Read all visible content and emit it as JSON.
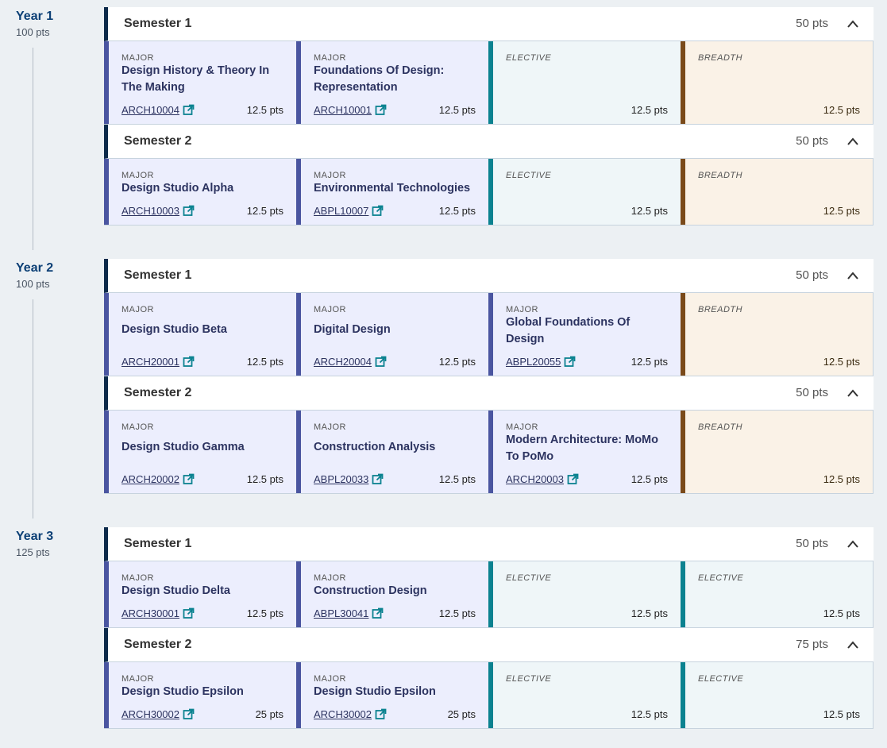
{
  "years": [
    {
      "title": "Year 1",
      "pts": "100 pts",
      "semesters": [
        {
          "title": "Semester 1",
          "pts": "50 pts",
          "cards": [
            {
              "kind": "major",
              "type": "MAJOR",
              "name": "Design History & Theory In The Making",
              "code": "ARCH10004",
              "pts": "12.5 pts"
            },
            {
              "kind": "major",
              "type": "MAJOR",
              "name": "Foundations Of Design: Representation",
              "code": "ARCH10001",
              "pts": "12.5 pts"
            },
            {
              "kind": "elective",
              "type": "ELECTIVE",
              "name": "",
              "code": "",
              "pts": "12.5 pts"
            },
            {
              "kind": "breadth",
              "type": "BREADTH",
              "name": "",
              "code": "",
              "pts": "12.5 pts"
            }
          ]
        },
        {
          "title": "Semester 2",
          "pts": "50 pts",
          "cards": [
            {
              "kind": "major",
              "type": "MAJOR",
              "name": "Design Studio Alpha",
              "code": "ARCH10003",
              "pts": "12.5 pts"
            },
            {
              "kind": "major",
              "type": "MAJOR",
              "name": "Environmental Technologies",
              "code": "ABPL10007",
              "pts": "12.5 pts"
            },
            {
              "kind": "elective",
              "type": "ELECTIVE",
              "name": "",
              "code": "",
              "pts": "12.5 pts"
            },
            {
              "kind": "breadth",
              "type": "BREADTH",
              "name": "",
              "code": "",
              "pts": "12.5 pts"
            }
          ]
        }
      ]
    },
    {
      "title": "Year 2",
      "pts": "100 pts",
      "semesters": [
        {
          "title": "Semester 1",
          "pts": "50 pts",
          "cards": [
            {
              "kind": "major",
              "type": "MAJOR",
              "name": "Design Studio Beta",
              "code": "ARCH20001",
              "pts": "12.5 pts"
            },
            {
              "kind": "major",
              "type": "MAJOR",
              "name": "Digital Design",
              "code": "ARCH20004",
              "pts": "12.5 pts"
            },
            {
              "kind": "major",
              "type": "MAJOR",
              "name": "Global Foundations Of Design",
              "code": "ABPL20055",
              "pts": "12.5 pts"
            },
            {
              "kind": "breadth",
              "type": "BREADTH",
              "name": "",
              "code": "",
              "pts": "12.5 pts"
            }
          ]
        },
        {
          "title": "Semester 2",
          "pts": "50 pts",
          "cards": [
            {
              "kind": "major",
              "type": "MAJOR",
              "name": "Design Studio Gamma",
              "code": "ARCH20002",
              "pts": "12.5 pts"
            },
            {
              "kind": "major",
              "type": "MAJOR",
              "name": "Construction Analysis",
              "code": "ABPL20033",
              "pts": "12.5 pts"
            },
            {
              "kind": "major",
              "type": "MAJOR",
              "name": "Modern Architecture: MoMo To PoMo",
              "code": "ARCH20003",
              "pts": "12.5 pts"
            },
            {
              "kind": "breadth",
              "type": "BREADTH",
              "name": "",
              "code": "",
              "pts": "12.5 pts"
            }
          ]
        }
      ]
    },
    {
      "title": "Year 3",
      "pts": "125 pts",
      "semesters": [
        {
          "title": "Semester 1",
          "pts": "50 pts",
          "cards": [
            {
              "kind": "major",
              "type": "MAJOR",
              "name": "Design Studio Delta",
              "code": "ARCH30001",
              "pts": "12.5 pts"
            },
            {
              "kind": "major",
              "type": "MAJOR",
              "name": "Construction Design",
              "code": "ABPL30041",
              "pts": "12.5 pts"
            },
            {
              "kind": "elective",
              "type": "ELECTIVE",
              "name": "",
              "code": "",
              "pts": "12.5 pts"
            },
            {
              "kind": "elective",
              "type": "ELECTIVE",
              "name": "",
              "code": "",
              "pts": "12.5 pts"
            }
          ]
        },
        {
          "title": "Semester 2",
          "pts": "75 pts",
          "cards": [
            {
              "kind": "major",
              "type": "MAJOR",
              "name": "Design Studio Epsilon",
              "code": "ARCH30002",
              "pts": "25 pts"
            },
            {
              "kind": "major",
              "type": "MAJOR",
              "name": "Design Studio Epsilon",
              "code": "ARCH30002",
              "pts": "25 pts"
            },
            {
              "kind": "elective",
              "type": "ELECTIVE",
              "name": "",
              "code": "",
              "pts": "12.5 pts"
            },
            {
              "kind": "elective",
              "type": "ELECTIVE",
              "name": "",
              "code": "",
              "pts": "12.5 pts"
            }
          ]
        }
      ]
    }
  ],
  "icons": {
    "external_link": "external-link-icon",
    "collapse": "chevron-up-icon"
  },
  "colors": {
    "major": "#4a55a0",
    "elective": "#0b8290",
    "breadth": "#7a4a1a",
    "year_title": "#0b3f75"
  }
}
